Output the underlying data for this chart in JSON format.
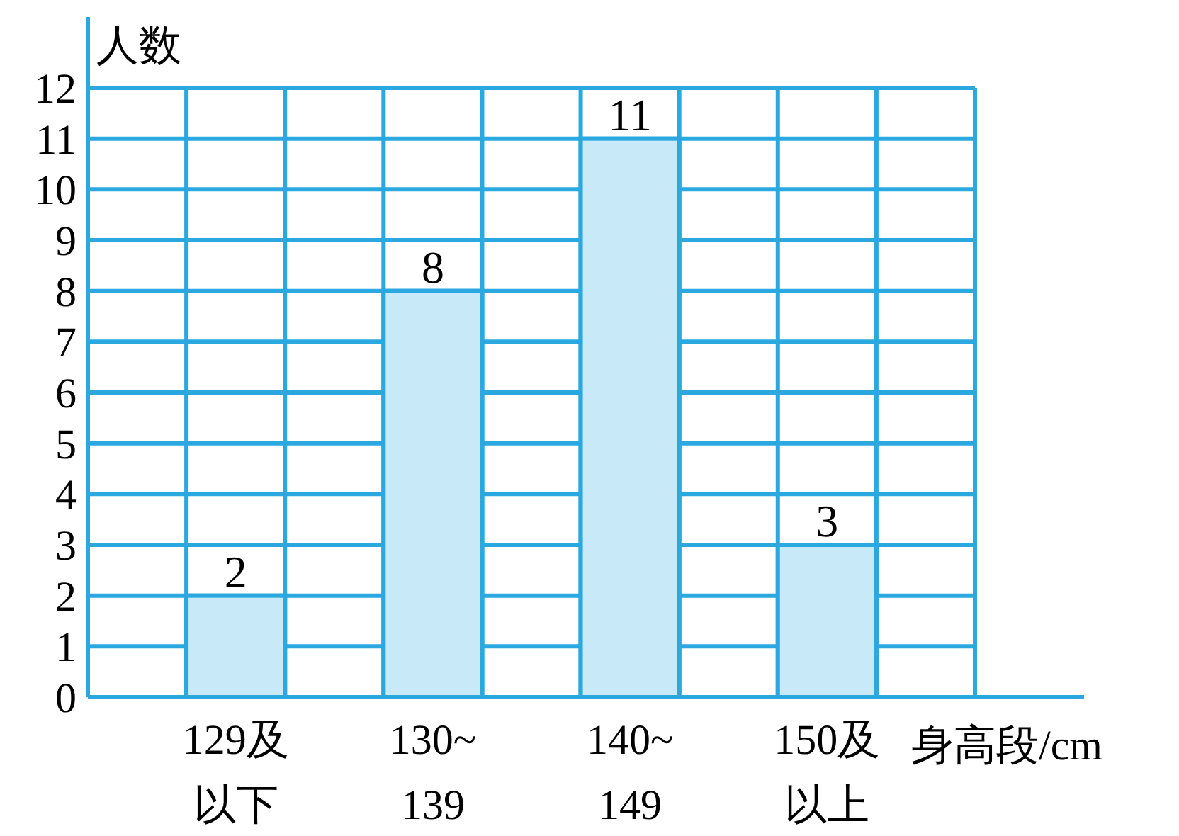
{
  "chart_data": {
    "type": "bar",
    "xlabel": "身高段/cm",
    "ylabel": "人数",
    "categories": [
      "129及以下",
      "130~139",
      "140~149",
      "150及以上"
    ],
    "values": [
      2,
      8,
      11,
      3
    ],
    "color": "#c8e9f8",
    "ylim": [
      0,
      12
    ],
    "yticks": [
      0,
      1,
      2,
      3,
      4,
      5,
      6,
      7,
      8,
      9,
      10,
      11,
      12
    ],
    "grid": true,
    "data_labels": true
  }
}
